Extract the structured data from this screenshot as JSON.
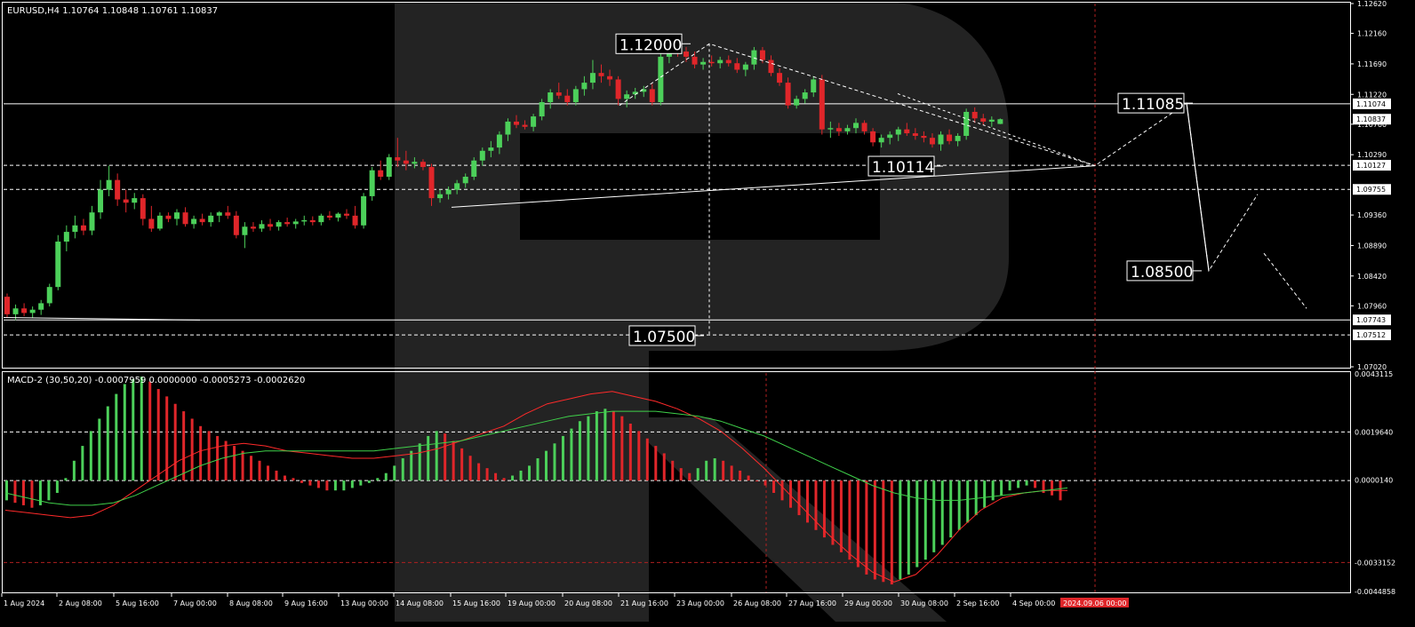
{
  "window": {
    "symbol_line": "EURUSD,H4  1.10764 1.10848 1.10761 1.10837",
    "macd_line": "MACD-2 (30,50,20) -0.0007959 0.0000000 -0.0005273 -0.0002620"
  },
  "colors": {
    "background": "#000000",
    "bull": "#4cd05a",
    "bear": "#e0262a",
    "frame": "#ffffff",
    "signal_main": "#ff2a2a",
    "signal_secondary": "#3fd04a",
    "current_price_tag": "#ffffff",
    "time_highlight": "#e0262a",
    "watermark": "#2b2b2b"
  },
  "chart_data": [
    {
      "type": "candlestick",
      "title": "EURUSD,H4  1.10764 1.10848 1.10761 1.10837",
      "ylim": [
        1.0702,
        1.1262
      ],
      "y_ticks": [
        "1.12620",
        "1.12160",
        "1.11690",
        "1.11220",
        "1.10760",
        "1.10290",
        "1.09360",
        "1.08890",
        "1.08420",
        "1.07960",
        "1.07020"
      ],
      "price_tags": [
        {
          "label": "1.11074",
          "value": 1.11074,
          "style": "line"
        },
        {
          "label": "1.10837",
          "value": 1.10837,
          "style": "current"
        },
        {
          "label": "1.10127",
          "value": 1.10127,
          "style": "dashed"
        },
        {
          "label": "1.09755",
          "value": 1.09755,
          "style": "dashed"
        },
        {
          "label": "1.07743",
          "value": 1.07743,
          "style": "line"
        },
        {
          "label": "1.07512",
          "value": 1.07512,
          "style": "dashed"
        }
      ],
      "x_labels": [
        "1 Aug 2024",
        "2 Aug 08:00",
        "5 Aug 16:00",
        "7 Aug 00:00",
        "8 Aug 08:00",
        "9 Aug 16:00",
        "13 Aug 00:00",
        "14 Aug 08:00",
        "15 Aug 16:00",
        "19 Aug 00:00",
        "20 Aug 08:00",
        "21 Aug 16:00",
        "23 Aug 00:00",
        "26 Aug 08:00",
        "27 Aug 16:00",
        "29 Aug 00:00",
        "30 Aug 08:00",
        "2 Sep 16:00",
        "4 Sep 00:00"
      ],
      "x_highlight_label": "2024.09.06 00:00",
      "candles": [
        [
          1.081,
          1.0815,
          1.0778,
          1.0783
        ],
        [
          1.0783,
          1.0798,
          1.0774,
          1.0792
        ],
        [
          1.0792,
          1.08,
          1.078,
          1.0785
        ],
        [
          1.0785,
          1.0795,
          1.0778,
          1.079
        ],
        [
          1.079,
          1.0805,
          1.0782,
          1.08
        ],
        [
          1.08,
          1.083,
          1.0795,
          1.0825
        ],
        [
          1.0825,
          1.0905,
          1.082,
          1.0895
        ],
        [
          1.0895,
          1.092,
          1.088,
          1.091
        ],
        [
          1.091,
          1.0935,
          1.09,
          1.092
        ],
        [
          1.092,
          1.093,
          1.0905,
          1.0912
        ],
        [
          1.0912,
          1.095,
          1.0905,
          1.094
        ],
        [
          1.094,
          1.099,
          1.093,
          1.0975
        ],
        [
          1.0975,
          1.1012,
          1.0965,
          1.099
        ],
        [
          1.099,
          1.1,
          1.095,
          1.096
        ],
        [
          1.096,
          1.0975,
          1.094,
          1.0955
        ],
        [
          1.0955,
          1.097,
          1.0945,
          1.0962
        ],
        [
          1.0962,
          1.0968,
          1.092,
          1.093
        ],
        [
          1.093,
          1.095,
          1.091,
          1.0915
        ],
        [
          1.0915,
          1.094,
          1.0912,
          1.0935
        ],
        [
          1.0935,
          1.094,
          1.0925,
          1.093
        ],
        [
          1.093,
          1.0945,
          1.092,
          1.094
        ],
        [
          1.094,
          1.0948,
          1.0918,
          1.0922
        ],
        [
          1.0922,
          1.0935,
          1.0915,
          1.093
        ],
        [
          1.093,
          1.0938,
          1.092,
          1.0925
        ],
        [
          1.0925,
          1.094,
          1.0918,
          1.0935
        ],
        [
          1.0935,
          1.0942,
          1.0925,
          1.094
        ],
        [
          1.094,
          1.095,
          1.093,
          1.0935
        ],
        [
          1.0935,
          1.0942,
          1.09,
          1.0905
        ],
        [
          1.0905,
          1.0925,
          1.0885,
          1.0918
        ],
        [
          1.0918,
          1.0925,
          1.091,
          1.0915
        ],
        [
          1.0915,
          1.0928,
          1.091,
          1.0922
        ],
        [
          1.0922,
          1.093,
          1.0912,
          1.0918
        ],
        [
          1.0918,
          1.0928,
          1.0912,
          1.0925
        ],
        [
          1.0925,
          1.0932,
          1.0918,
          1.0922
        ],
        [
          1.0922,
          1.093,
          1.0915,
          1.0926
        ],
        [
          1.0926,
          1.0935,
          1.092,
          1.0928
        ],
        [
          1.0928,
          1.0934,
          1.092,
          1.0925
        ],
        [
          1.0925,
          1.0938,
          1.092,
          1.0935
        ],
        [
          1.0935,
          1.0942,
          1.0928,
          1.0932
        ],
        [
          1.0932,
          1.094,
          1.0926,
          1.0938
        ],
        [
          1.0938,
          1.0945,
          1.093,
          1.0935
        ],
        [
          1.0935,
          1.095,
          1.0915,
          1.092
        ],
        [
          1.092,
          1.097,
          1.0915,
          1.0965
        ],
        [
          1.0965,
          1.101,
          1.0958,
          1.1005
        ],
        [
          1.1005,
          1.102,
          1.099,
          1.0995
        ],
        [
          1.0995,
          1.103,
          1.099,
          1.1025
        ],
        [
          1.1025,
          1.1055,
          1.101,
          1.102
        ],
        [
          1.102,
          1.1035,
          1.1005,
          1.1015
        ],
        [
          1.1015,
          1.1025,
          1.1008,
          1.1018
        ],
        [
          1.1018,
          1.1022,
          1.1005,
          1.101
        ],
        [
          1.101,
          1.1015,
          1.095,
          1.0962
        ],
        [
          1.0962,
          1.0975,
          1.0955,
          1.0968
        ],
        [
          1.0968,
          1.098,
          1.096,
          1.0975
        ],
        [
          1.0975,
          1.099,
          1.0968,
          1.0985
        ],
        [
          1.0985,
          1.1,
          1.0978,
          1.0995
        ],
        [
          1.0995,
          1.1025,
          1.099,
          1.102
        ],
        [
          1.102,
          1.104,
          1.1012,
          1.1035
        ],
        [
          1.1035,
          1.105,
          1.1025,
          1.104
        ],
        [
          1.104,
          1.1065,
          1.103,
          1.106
        ],
        [
          1.106,
          1.1085,
          1.105,
          1.108
        ],
        [
          1.108,
          1.109,
          1.107,
          1.1075
        ],
        [
          1.1075,
          1.1082,
          1.1068,
          1.1072
        ],
        [
          1.1072,
          1.1092,
          1.1065,
          1.1088
        ],
        [
          1.1088,
          1.1115,
          1.1082,
          1.111
        ],
        [
          1.111,
          1.113,
          1.11,
          1.1125
        ],
        [
          1.1125,
          1.114,
          1.1115,
          1.112
        ],
        [
          1.112,
          1.113,
          1.1105,
          1.111
        ],
        [
          1.111,
          1.1135,
          1.1105,
          1.113
        ],
        [
          1.113,
          1.115,
          1.112,
          1.114
        ],
        [
          1.114,
          1.1175,
          1.113,
          1.1155
        ],
        [
          1.1155,
          1.1168,
          1.114,
          1.115
        ],
        [
          1.115,
          1.116,
          1.1135,
          1.1145
        ],
        [
          1.1145,
          1.115,
          1.1105,
          1.1115
        ],
        [
          1.1115,
          1.1128,
          1.1102,
          1.1122
        ],
        [
          1.1122,
          1.1132,
          1.1115,
          1.1126
        ],
        [
          1.1126,
          1.1135,
          1.1118,
          1.113
        ],
        [
          1.113,
          1.1138,
          1.1105,
          1.111
        ],
        [
          1.111,
          1.1185,
          1.1105,
          1.118
        ],
        [
          1.118,
          1.1205,
          1.117,
          1.1198
        ],
        [
          1.1198,
          1.1202,
          1.118,
          1.1188
        ],
        [
          1.1188,
          1.1195,
          1.1172,
          1.118
        ],
        [
          1.118,
          1.1188,
          1.1162,
          1.1168
        ],
        [
          1.1168,
          1.1178,
          1.116,
          1.1172
        ],
        [
          1.1172,
          1.1182,
          1.1165,
          1.117
        ],
        [
          1.117,
          1.118,
          1.1162,
          1.1175
        ],
        [
          1.1175,
          1.1182,
          1.1165,
          1.117
        ],
        [
          1.117,
          1.1178,
          1.1155,
          1.116
        ],
        [
          1.116,
          1.1172,
          1.115,
          1.1168
        ],
        [
          1.1168,
          1.1195,
          1.116,
          1.119
        ],
        [
          1.119,
          1.1195,
          1.117,
          1.1175
        ],
        [
          1.1175,
          1.1182,
          1.115,
          1.1155
        ],
        [
          1.1155,
          1.1162,
          1.1135,
          1.114
        ],
        [
          1.114,
          1.1148,
          1.11,
          1.1105
        ],
        [
          1.1105,
          1.112,
          1.11,
          1.1115
        ],
        [
          1.1115,
          1.113,
          1.1108,
          1.1125
        ],
        [
          1.1125,
          1.115,
          1.1118,
          1.1145
        ],
        [
          1.1145,
          1.1152,
          1.106,
          1.1068
        ],
        [
          1.1068,
          1.108,
          1.1055,
          1.107
        ],
        [
          1.107,
          1.1078,
          1.1058,
          1.1065
        ],
        [
          1.1065,
          1.1075,
          1.106,
          1.107
        ],
        [
          1.107,
          1.1085,
          1.1062,
          1.1078
        ],
        [
          1.1078,
          1.1082,
          1.106,
          1.1065
        ],
        [
          1.1065,
          1.107,
          1.1042,
          1.1048
        ],
        [
          1.1048,
          1.106,
          1.104,
          1.1055
        ],
        [
          1.1055,
          1.1065,
          1.1045,
          1.106
        ],
        [
          1.106,
          1.1072,
          1.105,
          1.1068
        ],
        [
          1.1068,
          1.1078,
          1.1058,
          1.1062
        ],
        [
          1.1062,
          1.107,
          1.1052,
          1.1058
        ],
        [
          1.1058,
          1.1065,
          1.1048,
          1.1055
        ],
        [
          1.1055,
          1.1062,
          1.104,
          1.1045
        ],
        [
          1.1045,
          1.1065,
          1.1035,
          1.106
        ],
        [
          1.106,
          1.1068,
          1.1045,
          1.105
        ],
        [
          1.105,
          1.1062,
          1.1042,
          1.1058
        ],
        [
          1.1058,
          1.11,
          1.1052,
          1.1095
        ],
        [
          1.1095,
          1.1102,
          1.1078,
          1.1085
        ],
        [
          1.1085,
          1.1092,
          1.1075,
          1.108
        ],
        [
          1.108,
          1.1088,
          1.1072,
          1.1083
        ],
        [
          1.10764,
          1.10848,
          1.10761,
          1.10837
        ]
      ],
      "forecast_labels": [
        {
          "label": "1.12000",
          "value": 1.12
        },
        {
          "label": "1.10114",
          "value": 1.10114
        },
        {
          "label": "1.11085",
          "value": 1.11085
        },
        {
          "label": "1.08500",
          "value": 1.085
        },
        {
          "label": "1.07500",
          "value": 1.075
        }
      ]
    },
    {
      "type": "bar",
      "title": "MACD-2 (30,50,20) -0.0007959 0.0000000 -0.0005273 -0.0002620",
      "ylim": [
        -0.004485,
        0.004311
      ],
      "y_ticks": [
        "0.0043115",
        "0.0019640",
        "0.0000140",
        "-0.0033152",
        "-0.0044858"
      ],
      "histogram": [
        -0.0008,
        -0.0009,
        -0.001,
        -0.0011,
        -0.001,
        -0.0008,
        -0.0005,
        0.0001,
        0.0008,
        0.0014,
        0.002,
        0.0025,
        0.003,
        0.0035,
        0.0039,
        0.0041,
        0.0042,
        0.004,
        0.0037,
        0.0034,
        0.0031,
        0.0028,
        0.0025,
        0.0022,
        0.002,
        0.0018,
        0.0016,
        0.0014,
        0.0012,
        0.001,
        0.0008,
        0.0006,
        0.0004,
        0.0002,
        0.0001,
        -0.0001,
        -0.0002,
        -0.0003,
        -0.0004,
        -0.0004,
        -0.0004,
        -0.0003,
        -0.0002,
        -0.0001,
        0.0001,
        0.0003,
        0.0006,
        0.0009,
        0.0012,
        0.0015,
        0.0018,
        0.002,
        0.0019,
        0.0016,
        0.0013,
        0.001,
        0.0007,
        0.0005,
        0.0003,
        0.0001,
        0.0002,
        0.0004,
        0.0006,
        0.0009,
        0.0012,
        0.0015,
        0.0018,
        0.0021,
        0.0024,
        0.0026,
        0.0028,
        0.0029,
        0.0028,
        0.0026,
        0.0023,
        0.002,
        0.0017,
        0.0014,
        0.0011,
        0.0008,
        0.0005,
        0.0003,
        0.0005,
        0.0008,
        0.0009,
        0.0008,
        0.0006,
        0.0004,
        0.0002,
        0.0,
        -0.0002,
        -0.0005,
        -0.0008,
        -0.0011,
        -0.0014,
        -0.0017,
        -0.002,
        -0.0023,
        -0.0026,
        -0.0029,
        -0.0032,
        -0.0035,
        -0.0038,
        -0.004,
        -0.0041,
        -0.0042,
        -0.004,
        -0.0038,
        -0.0035,
        -0.0032,
        -0.0029,
        -0.0026,
        -0.0023,
        -0.002,
        -0.0017,
        -0.0014,
        -0.0011,
        -0.0008,
        -0.0006,
        -0.0004,
        -0.0003,
        -0.0002,
        -0.0003,
        -0.0005,
        -0.0006,
        -0.0008
      ],
      "signal_main": [
        -0.0012,
        -0.0013,
        -0.0014,
        -0.0015,
        -0.0014,
        -0.001,
        -0.0004,
        0.0002,
        0.0008,
        0.0012,
        0.0014,
        0.0015,
        0.0014,
        0.0012,
        0.0011,
        0.001,
        0.0009,
        0.0009,
        0.001,
        0.0011,
        0.0013,
        0.0016,
        0.0019,
        0.0022,
        0.0027,
        0.0031,
        0.0033,
        0.0035,
        0.0036,
        0.0034,
        0.0032,
        0.0029,
        0.0025,
        0.002,
        0.0013,
        0.0005,
        -0.0004,
        -0.0013,
        -0.0022,
        -0.003,
        -0.0037,
        -0.0041,
        -0.0038,
        -0.003,
        -0.002,
        -0.0012,
        -0.0007,
        -0.0005,
        -0.0004,
        -0.0004
      ],
      "signal_secondary": [
        -0.0005,
        -0.0007,
        -0.0009,
        -0.001,
        -0.001,
        -0.0009,
        -0.0006,
        -0.0002,
        0.0002,
        0.0006,
        0.0009,
        0.0011,
        0.0012,
        0.0012,
        0.0012,
        0.0012,
        0.0012,
        0.0012,
        0.0013,
        0.0014,
        0.0015,
        0.0016,
        0.0018,
        0.002,
        0.0022,
        0.0024,
        0.0026,
        0.0027,
        0.0028,
        0.0028,
        0.0028,
        0.0027,
        0.0026,
        0.0024,
        0.0021,
        0.0018,
        0.0014,
        0.001,
        0.0006,
        0.0002,
        -0.0002,
        -0.0005,
        -0.0007,
        -0.0008,
        -0.0008,
        -0.0007,
        -0.0006,
        -0.0005,
        -0.0004,
        -0.0003
      ],
      "x_labels": [
        "1 Aug 2024",
        "2 Aug 08:00",
        "5 Aug 16:00",
        "7 Aug 00:00",
        "8 Aug 08:00",
        "9 Aug 16:00",
        "13 Aug 00:00",
        "14 Aug 08:00",
        "15 Aug 16:00",
        "19 Aug 00:00",
        "20 Aug 08:00",
        "21 Aug 16:00",
        "23 Aug 00:00",
        "26 Aug 08:00",
        "27 Aug 16:00",
        "29 Aug 00:00",
        "30 Aug 08:00",
        "2 Sep 16:00",
        "4 Sep 00:00"
      ]
    }
  ]
}
